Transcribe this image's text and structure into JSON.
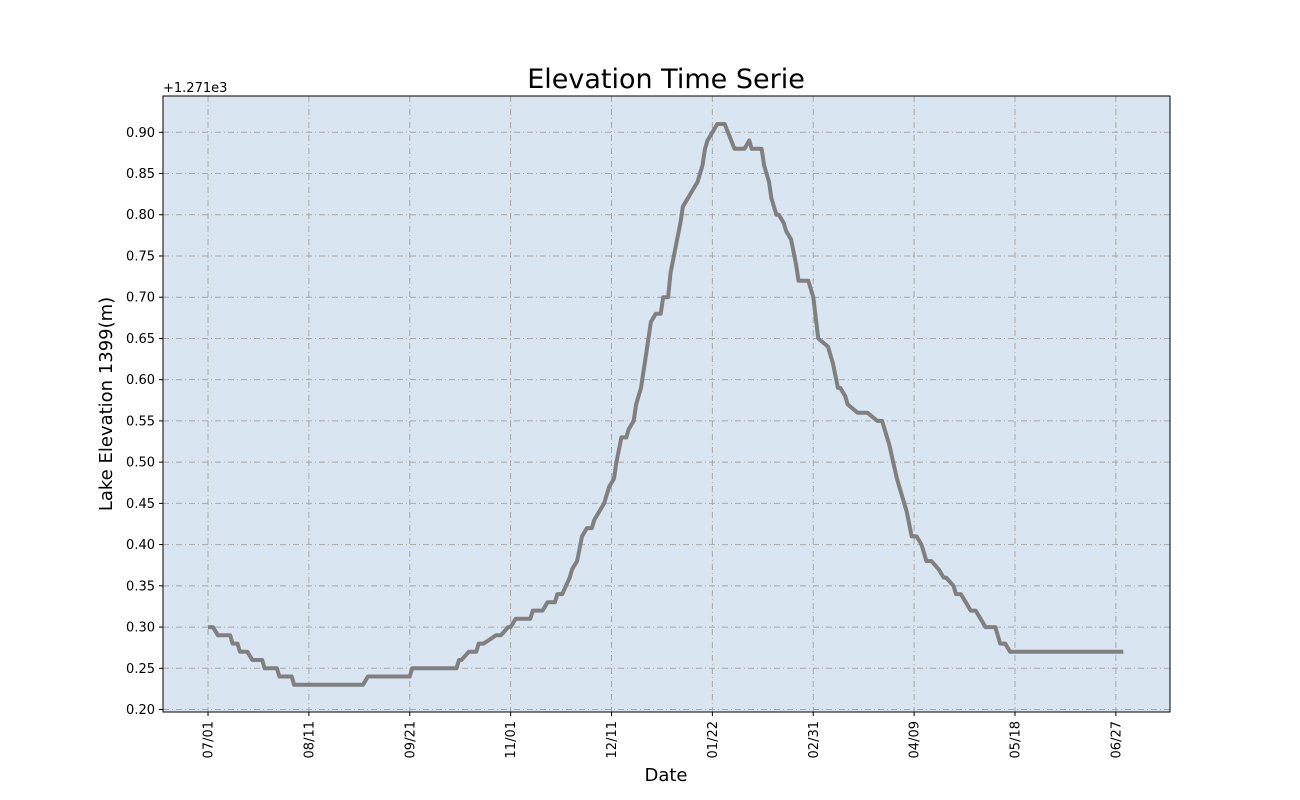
{
  "chart_data": {
    "type": "line",
    "title": "Elevation Time Serie",
    "xlabel": "Date",
    "ylabel": "Lake Elevation 1399(m)",
    "y_offset_label": "+1.271e3",
    "y_offset": 1271,
    "ylim": [
      1271.197,
      1271.944
    ],
    "yticks": [
      0.2,
      0.25,
      0.3,
      0.35,
      0.4,
      0.45,
      0.5,
      0.55,
      0.6,
      0.65,
      0.7,
      0.75,
      0.8,
      0.85,
      0.9
    ],
    "ytick_labels": [
      "0.20",
      "0.25",
      "0.30",
      "0.35",
      "0.40",
      "0.45",
      "0.50",
      "0.55",
      "0.60",
      "0.65",
      "0.70",
      "0.75",
      "0.80",
      "0.85",
      "0.90"
    ],
    "xtick_labels": [
      "07/01",
      "08/11",
      "09/21",
      "11/01",
      "12/11",
      "01/22",
      "02/31",
      "04/09",
      "05/18",
      "06/27"
    ],
    "xtick_days": [
      0,
      41,
      82,
      123,
      164,
      205,
      246,
      287,
      328,
      369
    ],
    "x_range_days": [
      -18.3,
      391
    ],
    "grid": true,
    "background_color": "#d9e5f0",
    "grid_color": "#a8a8a8",
    "line_color": "#808080",
    "series": [
      {
        "x_days": [
          0,
          2,
          4,
          6,
          7,
          9,
          10,
          12,
          13,
          15,
          16,
          18,
          20,
          22,
          23,
          25,
          28,
          29,
          31,
          34,
          35,
          37,
          63,
          65,
          82,
          83,
          85,
          101,
          102,
          103,
          106,
          109,
          110,
          112,
          117,
          119,
          122,
          123,
          125,
          128,
          129,
          131,
          132,
          136,
          138,
          141,
          142,
          144,
          147,
          148,
          150,
          152,
          154,
          156,
          157,
          159,
          161,
          163,
          165,
          166,
          168,
          170,
          171,
          173,
          174,
          176,
          178,
          180,
          182,
          184,
          185,
          187,
          188,
          190,
          192,
          193,
          195,
          197,
          199,
          201,
          202,
          203,
          205,
          207,
          210,
          214,
          218,
          220,
          221,
          223,
          225,
          226,
          228,
          229,
          231,
          232,
          234,
          235,
          237,
          239,
          240,
          244,
          246,
          248,
          252,
          254,
          256,
          257,
          259,
          260,
          264,
          268,
          272,
          274,
          275,
          277,
          280,
          284,
          286,
          288,
          290,
          292,
          294,
          297,
          299,
          300,
          303,
          304,
          306,
          308,
          310,
          312,
          314,
          316,
          318,
          320,
          322,
          324,
          326,
          328,
          332,
          334,
          336,
          338,
          339,
          340,
          342,
          344,
          347,
          348,
          350,
          351,
          353,
          356,
          357,
          358,
          361,
          362,
          364,
          368,
          369,
          370,
          372
        ],
        "values": [
          1271.3,
          1271.3,
          1271.29,
          1271.29,
          1271.29,
          1271.29,
          1271.28,
          1271.28,
          1271.27,
          1271.27,
          1271.27,
          1271.26,
          1271.26,
          1271.26,
          1271.25,
          1271.25,
          1271.25,
          1271.24,
          1271.24,
          1271.24,
          1271.23,
          1271.23,
          1271.23,
          1271.24,
          1271.24,
          1271.25,
          1271.25,
          1271.25,
          1271.26,
          1271.26,
          1271.27,
          1271.27,
          1271.28,
          1271.28,
          1271.29,
          1271.29,
          1271.3,
          1271.3,
          1271.31,
          1271.31,
          1271.31,
          1271.31,
          1271.32,
          1271.32,
          1271.33,
          1271.33,
          1271.34,
          1271.34,
          1271.36,
          1271.37,
          1271.38,
          1271.41,
          1271.42,
          1271.42,
          1271.43,
          1271.44,
          1271.45,
          1271.47,
          1271.48,
          1271.5,
          1271.53,
          1271.53,
          1271.54,
          1271.55,
          1271.57,
          1271.59,
          1271.63,
          1271.67,
          1271.68,
          1271.68,
          1271.7,
          1271.7,
          1271.73,
          1271.76,
          1271.79,
          1271.81,
          1271.82,
          1271.83,
          1271.84,
          1271.86,
          1271.88,
          1271.89,
          1271.9,
          1271.91,
          1271.91,
          1271.88,
          1271.88,
          1271.89,
          1271.88,
          1271.88,
          1271.88,
          1271.86,
          1271.84,
          1271.82,
          1271.8,
          1271.8,
          1271.79,
          1271.78,
          1271.77,
          1271.74,
          1271.72,
          1271.72,
          1271.7,
          1271.65,
          1271.64,
          1271.62,
          1271.59,
          1271.59,
          1271.58,
          1271.57,
          1271.56,
          1271.56,
          1271.55,
          1271.55,
          1271.54,
          1271.52,
          1271.48,
          1271.44,
          1271.41,
          1271.41,
          1271.4,
          1271.38,
          1271.38,
          1271.37,
          1271.36,
          1271.36,
          1271.35,
          1271.34,
          1271.34,
          1271.33,
          1271.32,
          1271.32,
          1271.31,
          1271.3,
          1271.3,
          1271.3,
          1271.28,
          1271.28,
          1271.27,
          1271.27,
          1271.27,
          1271.27,
          1271.27,
          1271.27,
          1271.27,
          1271.27,
          1271.27,
          1271.27,
          1271.27,
          1271.27,
          1271.27,
          1271.27,
          1271.27,
          1271.27,
          1271.27,
          1271.27,
          1271.27,
          1271.27,
          1271.27,
          1271.27,
          1271.27,
          1271.27,
          1271.27
        ]
      }
    ]
  }
}
